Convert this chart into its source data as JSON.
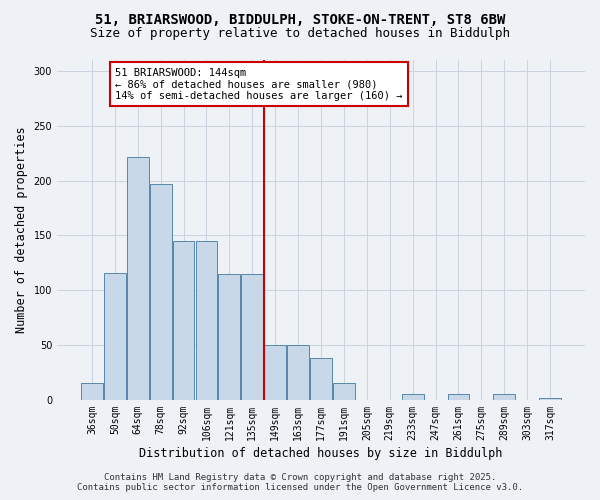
{
  "title_line1": "51, BRIARSWOOD, BIDDULPH, STOKE-ON-TRENT, ST8 6BW",
  "title_line2": "Size of property relative to detached houses in Biddulph",
  "xlabel": "Distribution of detached houses by size in Biddulph",
  "ylabel": "Number of detached properties",
  "categories": [
    "36sqm",
    "50sqm",
    "64sqm",
    "78sqm",
    "92sqm",
    "106sqm",
    "121sqm",
    "135sqm",
    "149sqm",
    "163sqm",
    "177sqm",
    "191sqm",
    "205sqm",
    "219sqm",
    "233sqm",
    "247sqm",
    "261sqm",
    "275sqm",
    "289sqm",
    "303sqm",
    "317sqm"
  ],
  "values": [
    15,
    116,
    222,
    197,
    145,
    145,
    115,
    115,
    50,
    50,
    38,
    15,
    0,
    0,
    5,
    0,
    5,
    0,
    5,
    0,
    2
  ],
  "bar_color": "#c8d8e8",
  "bar_edge_color": "#5588aa",
  "grid_color": "#c8d4e0",
  "background_color": "#eef2f7",
  "vline_idx": 8,
  "vline_color": "#cc0000",
  "annotation_text": "51 BRIARSWOOD: 144sqm\n← 86% of detached houses are smaller (980)\n14% of semi-detached houses are larger (160) →",
  "annotation_box_color": "#ffffff",
  "annotation_box_edge": "#cc0000",
  "ylim": [
    0,
    310
  ],
  "yticks": [
    0,
    50,
    100,
    150,
    200,
    250,
    300
  ],
  "footer_line1": "Contains HM Land Registry data © Crown copyright and database right 2025.",
  "footer_line2": "Contains public sector information licensed under the Open Government Licence v3.0.",
  "title_fontsize": 10,
  "subtitle_fontsize": 9,
  "axis_label_fontsize": 8.5,
  "tick_fontsize": 7,
  "annotation_fontsize": 7.5,
  "footer_fontsize": 6.5
}
